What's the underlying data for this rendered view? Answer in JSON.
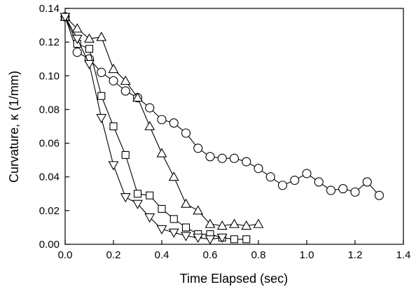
{
  "chart_data": {
    "type": "scatter",
    "title": "",
    "xlabel": "Time Elapsed (sec)",
    "ylabel": "Curvature, κ (1/mm)",
    "xlim": [
      0.0,
      1.4
    ],
    "ylim": [
      0.0,
      0.14
    ],
    "xticks": [
      "0.0",
      "0.2",
      "0.4",
      "0.6",
      "0.8",
      "1.0",
      "1.2",
      "1.4"
    ],
    "yticks": [
      "0.00",
      "0.02",
      "0.04",
      "0.06",
      "0.08",
      "0.10",
      "0.12",
      "0.14"
    ],
    "grid": false,
    "legend": "none",
    "series": [
      {
        "marker": "circle",
        "x": [
          0.0,
          0.05,
          0.1,
          0.15,
          0.2,
          0.25,
          0.3,
          0.35,
          0.4,
          0.45,
          0.5,
          0.55,
          0.6,
          0.65,
          0.7,
          0.75,
          0.8,
          0.85,
          0.9,
          0.95,
          1.0,
          1.05,
          1.1,
          1.15,
          1.2,
          1.25,
          1.3
        ],
        "y": [
          0.135,
          0.114,
          0.11,
          0.102,
          0.097,
          0.091,
          0.087,
          0.081,
          0.074,
          0.072,
          0.066,
          0.057,
          0.052,
          0.051,
          0.051,
          0.049,
          0.045,
          0.04,
          0.035,
          0.038,
          0.042,
          0.037,
          0.032,
          0.033,
          0.031,
          0.037,
          0.029
        ]
      },
      {
        "marker": "triangle-up",
        "x": [
          0.0,
          0.05,
          0.1,
          0.15,
          0.2,
          0.25,
          0.3,
          0.35,
          0.4,
          0.45,
          0.5,
          0.55,
          0.6,
          0.65,
          0.7,
          0.75,
          0.8
        ],
        "y": [
          0.135,
          0.128,
          0.122,
          0.123,
          0.104,
          0.097,
          0.087,
          0.07,
          0.054,
          0.04,
          0.024,
          0.02,
          0.012,
          0.011,
          0.012,
          0.011,
          0.012
        ]
      },
      {
        "marker": "square",
        "x": [
          0.0,
          0.05,
          0.1,
          0.15,
          0.2,
          0.25,
          0.3,
          0.35,
          0.4,
          0.45,
          0.5,
          0.55,
          0.6,
          0.65,
          0.7,
          0.75
        ],
        "y": [
          0.135,
          0.119,
          0.116,
          0.088,
          0.07,
          0.053,
          0.03,
          0.029,
          0.021,
          0.015,
          0.01,
          0.006,
          0.006,
          0.004,
          0.003,
          0.003
        ]
      },
      {
        "marker": "triangle-down",
        "x": [
          0.0,
          0.05,
          0.1,
          0.15,
          0.2,
          0.25,
          0.3,
          0.35,
          0.4,
          0.45,
          0.5,
          0.55,
          0.6,
          0.65
        ],
        "y": [
          0.135,
          0.122,
          0.107,
          0.075,
          0.047,
          0.028,
          0.024,
          0.016,
          0.009,
          0.007,
          0.005,
          0.004,
          0.003,
          0.004
        ]
      }
    ]
  }
}
